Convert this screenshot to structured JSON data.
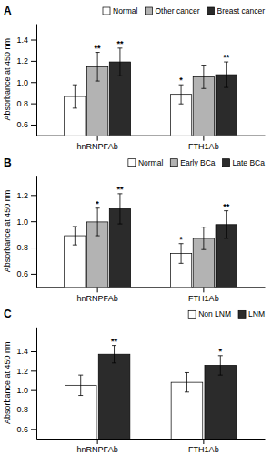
{
  "chart_data": [
    {
      "type": "bar",
      "title": "A",
      "ylabel": "Absorbance at 450 nm",
      "categories": [
        "hnRNPFAb",
        "FTH1Ab"
      ],
      "series": [
        {
          "name": "Normal",
          "color": "#ffffff",
          "values": [
            0.865,
            0.885
          ],
          "errors": [
            0.11,
            0.09
          ],
          "sig_labels": [
            null,
            "*"
          ]
        },
        {
          "name": "Other cancer",
          "color": "#b3b3b3",
          "values": [
            1.145,
            1.05
          ],
          "errors": [
            0.135,
            0.11
          ],
          "sig_labels": [
            "**",
            null
          ]
        },
        {
          "name": "Breast cancer",
          "color": "#2b2b2b",
          "values": [
            1.19,
            1.07
          ],
          "errors": [
            0.13,
            0.12
          ],
          "sig_labels": [
            "**",
            "**"
          ]
        }
      ],
      "ylim": [
        0.5,
        1.55
      ],
      "yticks": [
        0.6,
        0.8,
        {
          "value": 1.0,
          "label": "1.0"
        },
        1.2,
        1.4
      ],
      "legend": "upper right"
    },
    {
      "type": "bar",
      "title": "B",
      "ylabel": "Absorbance at 450 nm",
      "categories": [
        "hnRNPFAb",
        "FTH1Ab"
      ],
      "series": [
        {
          "name": "Normal",
          "color": "#ffffff",
          "values": [
            0.89,
            0.755
          ],
          "errors": [
            0.07,
            0.075
          ],
          "sig_labels": [
            null,
            "*"
          ]
        },
        {
          "name": "Early BCa",
          "color": "#b3b3b3",
          "values": [
            0.995,
            0.87
          ],
          "errors": [
            0.105,
            0.085
          ],
          "sig_labels": [
            "*",
            null
          ]
        },
        {
          "name": "Late BCa",
          "color": "#2b2b2b",
          "values": [
            1.095,
            0.975
          ],
          "errors": [
            0.115,
            0.105
          ],
          "sig_labels": [
            "**",
            "**"
          ]
        }
      ],
      "ylim": [
        0.5,
        1.35
      ],
      "yticks": [
        0.6,
        0.8,
        {
          "value": 1.0,
          "label": "1.0"
        },
        1.2
      ],
      "legend": "upper right"
    },
    {
      "type": "bar",
      "title": "C",
      "ylabel": "Absorbance at 450 nm",
      "categories": [
        "hnRNPFAb",
        "FTH1Ab"
      ],
      "series": [
        {
          "name": "Non LNM",
          "color": "#ffffff",
          "values": [
            1.05,
            1.08
          ],
          "errors": [
            0.105,
            0.1
          ],
          "sig_labels": [
            null,
            null
          ]
        },
        {
          "name": "LNM",
          "color": "#2b2b2b",
          "values": [
            1.37,
            1.255
          ],
          "errors": [
            0.09,
            0.1
          ],
          "sig_labels": [
            "**",
            "*"
          ]
        }
      ],
      "ylim": [
        0.5,
        1.65
      ],
      "yticks": [
        0.6,
        0.8,
        {
          "value": 1.0,
          "label": "1.0"
        },
        1.2,
        1.4
      ],
      "legend": "upper right"
    }
  ]
}
